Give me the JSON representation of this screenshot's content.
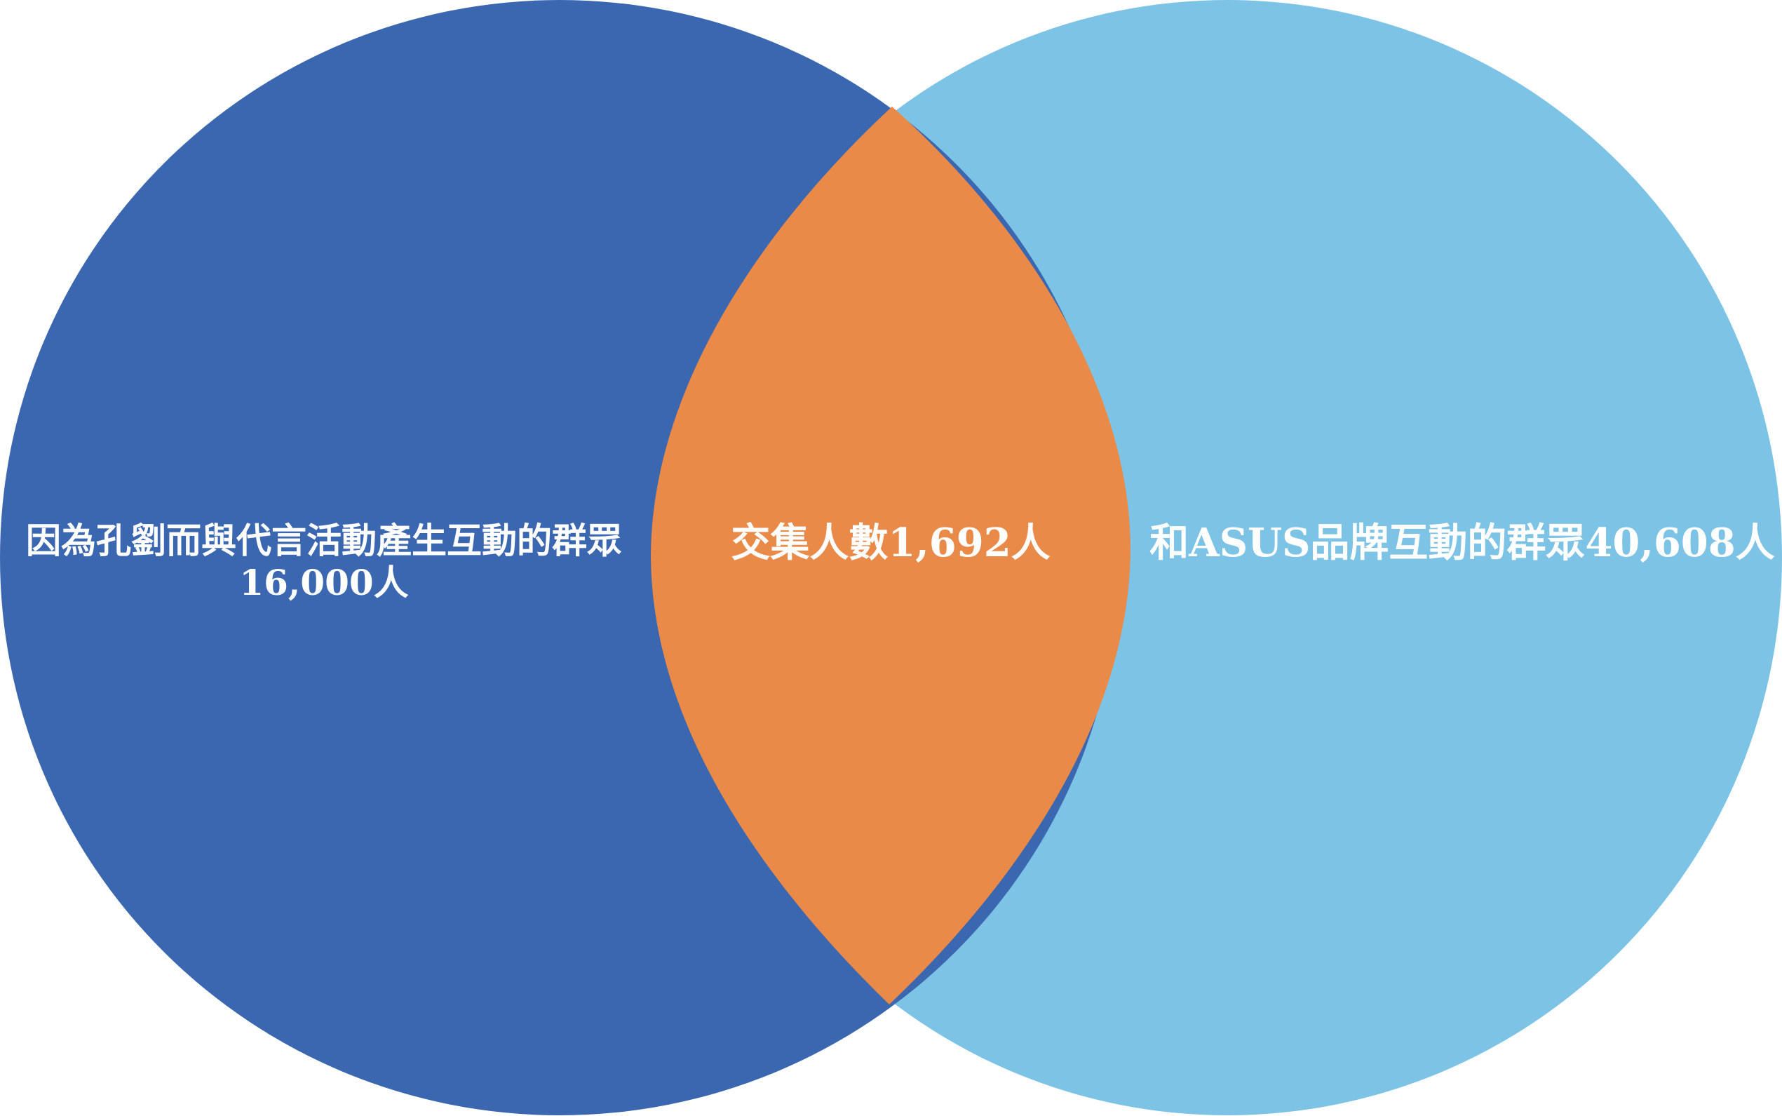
{
  "diagram": {
    "type": "venn",
    "sets": [
      {
        "id": "left",
        "label_line1": "因為孔劉而與代言活動產生互動的群眾",
        "label_line2": "16,000人",
        "color": "#3A67B0"
      },
      {
        "id": "right",
        "label": "和ASUS品牌互動的群眾40,608人",
        "color": "#7CC3E6"
      }
    ],
    "intersection": {
      "label": "交集人數1,692人",
      "color": "#EA8A48"
    }
  }
}
